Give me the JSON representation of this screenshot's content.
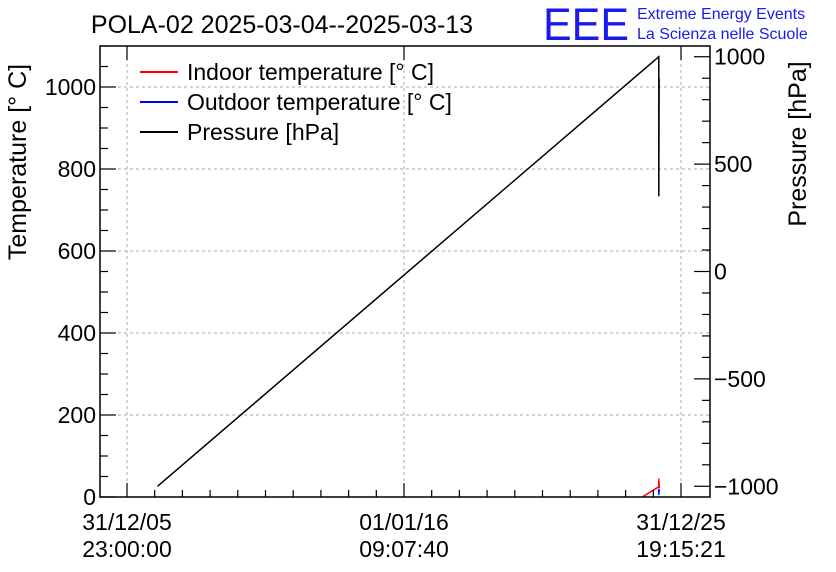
{
  "chart_data": {
    "type": "line",
    "title": "POLA-02 2025-03-04--2025-03-13",
    "ylabel": "Temperature [° C]",
    "y2label": "Pressure [hPa]",
    "ylim": [
      0,
      1100
    ],
    "y2lim": [
      -1050,
      1050
    ],
    "xlim": [
      0,
      20
    ],
    "grid": true,
    "legend_position": "top-left",
    "x_ticks": [
      {
        "x": 0,
        "date": "31/12/05",
        "time": "23:00:00"
      },
      {
        "x": 10,
        "date": "01/01/16",
        "time": "09:07:40"
      },
      {
        "x": 20,
        "date": "31/12/25",
        "time": "19:15:21"
      }
    ],
    "y_ticks": [
      "0",
      "200",
      "400",
      "600",
      "800",
      "1000"
    ],
    "y_tick_values": [
      0,
      200,
      400,
      600,
      800,
      1000
    ],
    "y2_ticks": [
      "−1000",
      "−500",
      "0",
      "500",
      "1000"
    ],
    "y2_tick_values": [
      -1000,
      -500,
      0,
      500,
      1000
    ],
    "series": [
      {
        "name": "Indoor temperature [° C]",
        "color": "#ff0000",
        "axis": "left",
        "points": [
          [
            18.6,
            0
          ],
          [
            19.2,
            25
          ],
          [
            19.2,
            45
          ],
          [
            19.22,
            22
          ]
        ]
      },
      {
        "name": "Outdoor temperature [° C]",
        "color": "#0000ff",
        "axis": "left",
        "points": [
          [
            19.2,
            5
          ],
          [
            19.2,
            20
          ],
          [
            19.22,
            12
          ]
        ]
      },
      {
        "name": "Pressure [hPa]",
        "color": "#000000",
        "axis": "right",
        "points": [
          [
            1.1,
            -1000
          ],
          [
            19.2,
            1000
          ],
          [
            19.2,
            350
          ],
          [
            19.21,
            900
          ]
        ]
      }
    ]
  },
  "logo": {
    "text": "EEE",
    "line1": "Extreme Energy Events",
    "line2": "La Scienza nelle Scuole"
  }
}
